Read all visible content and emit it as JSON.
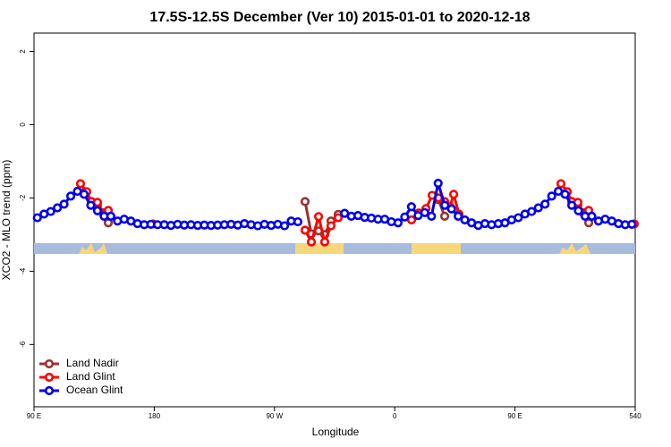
{
  "chart_data": {
    "type": "line",
    "title": "17.5S-12.5S December (Ver 10)   2015-01-01 to 2020-12-18",
    "xlabel": "Longitude",
    "ylabel": "XCO2 - MLO trend (ppm)",
    "xlim": [
      90,
      540
    ],
    "xticks": [
      {
        "value": 90,
        "label": "90 E"
      },
      180,
      {
        "value": 270,
        "label": "90 W"
      },
      {
        "value": 360,
        "label": "0"
      },
      {
        "value": 450,
        "label": "90 E"
      },
      540
    ],
    "ylim": [
      -7.7,
      2.5
    ],
    "yticks": [
      2,
      0,
      -2,
      -4,
      -6
    ],
    "legend": "bottom-left",
    "series": [
      {
        "name": "Land Nadir",
        "color": "#993333",
        "x": [
          128.2,
          132.9,
          137.5,
          142.2,
          145.6,
          292.9,
          297.6,
          303,
          307.6,
          312.3,
          317.7,
          392.7,
          397.4,
          489.1,
          492.5,
          497.1,
          501.8,
          505.2
        ],
        "values": [
          -1.83,
          -2.1,
          -2.2,
          -2.4,
          -2.68,
          -2.1,
          -2.98,
          -2.9,
          -3.0,
          -2.63,
          -2.45,
          -2.05,
          -2.5,
          -1.83,
          -2.1,
          -2.2,
          -2.4,
          -2.68
        ]
      },
      {
        "name": "Land Glint",
        "color": "#ff0000",
        "x": [
          124.8,
          129.5,
          132.9,
          137.5,
          142.2,
          145.6,
          179.1,
          292.9,
          297.6,
          303,
          307.6,
          312.3,
          317.7,
          372.6,
          378,
          383.4,
          388,
          392.7,
          397.4,
          401.4,
          404.1,
          408.1,
          484.4,
          489.1,
          492.5,
          497.1,
          501.8,
          505.2,
          539.3
        ],
        "values": [
          -1.61,
          -1.83,
          -2.1,
          -2.12,
          -2.44,
          -2.34,
          -2.71,
          -2.88,
          -3.2,
          -2.51,
          -3.2,
          -2.76,
          -2.54,
          -2.6,
          -2.41,
          -2.29,
          -1.93,
          -2.0,
          -2.1,
          -2.24,
          -1.9,
          -2.44,
          -1.61,
          -1.83,
          -2.1,
          -2.12,
          -2.44,
          -2.34,
          -2.71
        ]
      },
      {
        "name": "Ocean Glint",
        "color": "#0000ee",
        "x": [
          92.5,
          97.5,
          102.5,
          107.5,
          112.5,
          117.5,
          122.5,
          127.5,
          132.5,
          137.5,
          142.5,
          147.5,
          152.5,
          157.5,
          162.5,
          167.5,
          172.5,
          177.5,
          182.5,
          187.5,
          192.5,
          197.5,
          202.5,
          207.5,
          212.5,
          217.5,
          222.5,
          227.5,
          232.5,
          237.5,
          242.5,
          247.5,
          252.5,
          257.5,
          262.5,
          267.5,
          272.5,
          277.5,
          282.5,
          287.5,
          322.5,
          327.5,
          332.5,
          337.5,
          342.5,
          347.5,
          352.5,
          357.5,
          362.5,
          367.5,
          372.5,
          377.5,
          382.5,
          387.5,
          392.5,
          397.5,
          402.5,
          407.5,
          412.5,
          417.5,
          422.5,
          427.5,
          432.5,
          437.5,
          442.5,
          447.5,
          452.5,
          457.5,
          462.5,
          467.5,
          472.5,
          477.5,
          482.5,
          487.5,
          492.5,
          497.5,
          502.5,
          507.5,
          512.5,
          517.5,
          522.5,
          527.5,
          532.5,
          537.5
        ],
        "values": [
          -2.54,
          -2.44,
          -2.37,
          -2.27,
          -2.17,
          -1.95,
          -1.82,
          -1.9,
          -2.2,
          -2.35,
          -2.5,
          -2.5,
          -2.63,
          -2.58,
          -2.63,
          -2.7,
          -2.73,
          -2.72,
          -2.73,
          -2.73,
          -2.75,
          -2.72,
          -2.74,
          -2.73,
          -2.75,
          -2.74,
          -2.75,
          -2.74,
          -2.73,
          -2.72,
          -2.74,
          -2.7,
          -2.73,
          -2.76,
          -2.72,
          -2.75,
          -2.72,
          -2.76,
          -2.63,
          -2.65,
          -2.42,
          -2.5,
          -2.48,
          -2.53,
          -2.55,
          -2.58,
          -2.58,
          -2.65,
          -2.68,
          -2.52,
          -2.24,
          -2.48,
          -2.4,
          -2.5,
          -1.6,
          -2.2,
          -2.3,
          -2.5,
          -2.6,
          -2.68,
          -2.75,
          -2.7,
          -2.73,
          -2.7,
          -2.68,
          -2.6,
          -2.54,
          -2.44,
          -2.37,
          -2.27,
          -2.17,
          -1.95,
          -1.82,
          -1.9,
          -2.2,
          -2.35,
          -2.5,
          -2.5,
          -2.63,
          -2.58,
          -2.63,
          -2.7,
          -2.73,
          -2.72
        ]
      }
    ]
  }
}
